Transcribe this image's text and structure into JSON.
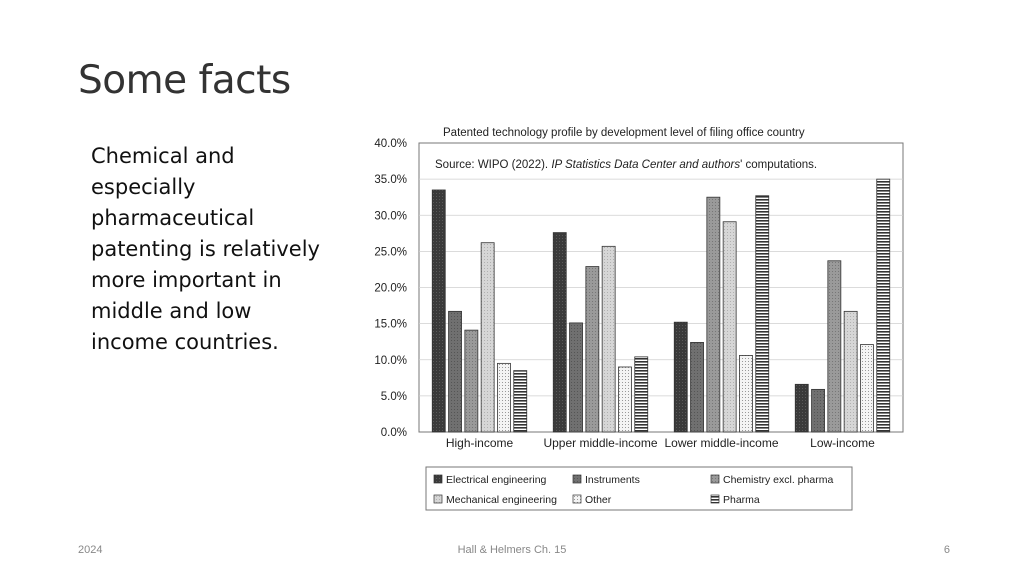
{
  "slide": {
    "title": "Some facts",
    "body": "Chemical and especially pharmaceutical patenting is relatively more important in middle and low income countries."
  },
  "footer": {
    "left": "2024",
    "center": "Hall & Helmers Ch. 15",
    "right": "6"
  },
  "chart_data": {
    "type": "bar",
    "title": "Patented technology profile by development level of filing office country",
    "source_prefix": "Source: WIPO (2022). ",
    "source_italic": "IP Statistics Data Center and authors",
    "source_suffix": "' computations.",
    "categories": [
      "High-income",
      "Upper middle-income",
      "Lower middle-income",
      "Low-income"
    ],
    "ylim": [
      0,
      40
    ],
    "y_ticks": [
      "0.0%",
      "5.0%",
      "10.0%",
      "15.0%",
      "20.0%",
      "25.0%",
      "30.0%",
      "35.0%",
      "40.0%"
    ],
    "grid": true,
    "legend_position": "bottom",
    "series": [
      {
        "name": "Electrical engineering",
        "values": [
          33.5,
          27.6,
          15.2,
          6.6
        ],
        "pattern": "dark"
      },
      {
        "name": "Instruments",
        "values": [
          16.7,
          15.1,
          12.4,
          5.9
        ],
        "pattern": "mid-dark"
      },
      {
        "name": "Chemistry excl. pharma",
        "values": [
          14.1,
          22.9,
          32.5,
          23.7
        ],
        "pattern": "mid"
      },
      {
        "name": "Mechanical engineering",
        "values": [
          26.2,
          25.7,
          29.1,
          16.7
        ],
        "pattern": "light"
      },
      {
        "name": "Other",
        "values": [
          9.5,
          9.0,
          10.6,
          12.1
        ],
        "pattern": "dots"
      },
      {
        "name": "Pharma",
        "values": [
          8.5,
          10.4,
          32.7,
          35.0
        ],
        "pattern": "stripes"
      }
    ]
  }
}
